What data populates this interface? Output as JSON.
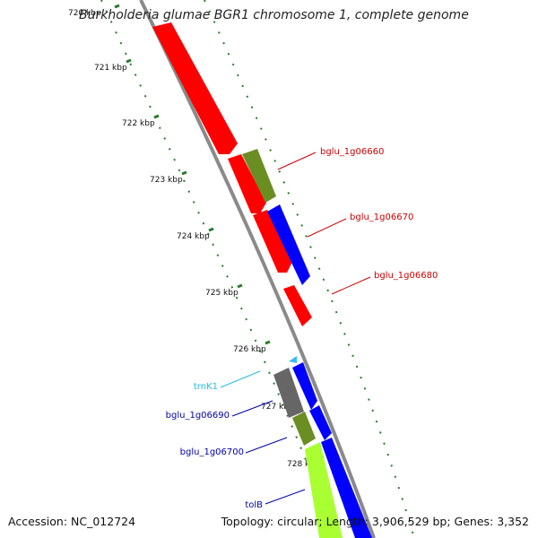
{
  "header": {
    "title": "Burkholderia glumae BGR1 chromosome 1, complete genome"
  },
  "footer": {
    "accession": "Accession: NC_012724",
    "summary": "Topology: circular; Length: 3,906,529 bp; Genes: 3,352"
  },
  "colors": {
    "backbone": "#8a8a8a",
    "tick": "#2a7a2a",
    "forward_label": "#cc0000",
    "reverse_label": "#0000aa",
    "trna_label": "#22bbdd"
  },
  "scale": {
    "ticks": [
      {
        "label": "720 kbp"
      },
      {
        "label": "721 kbp"
      },
      {
        "label": "722 kbp"
      },
      {
        "label": "723 kbp"
      },
      {
        "label": "724 kbp"
      },
      {
        "label": "725 kbp"
      },
      {
        "label": "726 kbp"
      },
      {
        "label": "727 kbp"
      },
      {
        "label": "728 kbp"
      }
    ]
  },
  "features": [
    {
      "id": "f1",
      "color": "#ff0000",
      "strand": "outer-left",
      "kind": "cds"
    },
    {
      "id": "f2",
      "color": "#ff0000",
      "strand": "outer-left",
      "kind": "cds"
    },
    {
      "id": "f3",
      "color": "#6b8e23",
      "strand": "outer-right",
      "kind": "cds"
    },
    {
      "id": "f4",
      "color": "#ff0000",
      "strand": "outer-left",
      "kind": "cds"
    },
    {
      "id": "f5",
      "color": "#0000ff",
      "strand": "outer-right",
      "kind": "cds"
    },
    {
      "id": "f6",
      "color": "#ff0000",
      "strand": "outer-left",
      "kind": "cds"
    },
    {
      "id": "f7",
      "color": "#33bbff",
      "strand": "inner",
      "kind": "trna"
    },
    {
      "id": "f8",
      "color": "#666666",
      "strand": "inner-left",
      "kind": "other"
    },
    {
      "id": "f9",
      "color": "#0000ff",
      "strand": "inner-right",
      "kind": "cds"
    },
    {
      "id": "f10",
      "color": "#6b8e23",
      "strand": "inner-left",
      "kind": "cds"
    },
    {
      "id": "f11",
      "color": "#0000ff",
      "strand": "inner-right",
      "kind": "cds"
    },
    {
      "id": "f12",
      "color": "#aaff33",
      "strand": "inner-left",
      "kind": "cds"
    },
    {
      "id": "f13",
      "color": "#0000ff",
      "strand": "inner-right",
      "kind": "cds"
    }
  ],
  "labels": [
    {
      "text": "bglu_1g06660",
      "color": "#cc0000"
    },
    {
      "text": "bglu_1g06670",
      "color": "#cc0000"
    },
    {
      "text": "bglu_1g06680",
      "color": "#cc0000"
    },
    {
      "text": "trnK1",
      "color": "#22bbdd"
    },
    {
      "text": "bglu_1g06690",
      "color": "#0000aa"
    },
    {
      "text": "bglu_1g06700",
      "color": "#0000aa"
    },
    {
      "text": "tolB",
      "color": "#0000aa"
    }
  ]
}
